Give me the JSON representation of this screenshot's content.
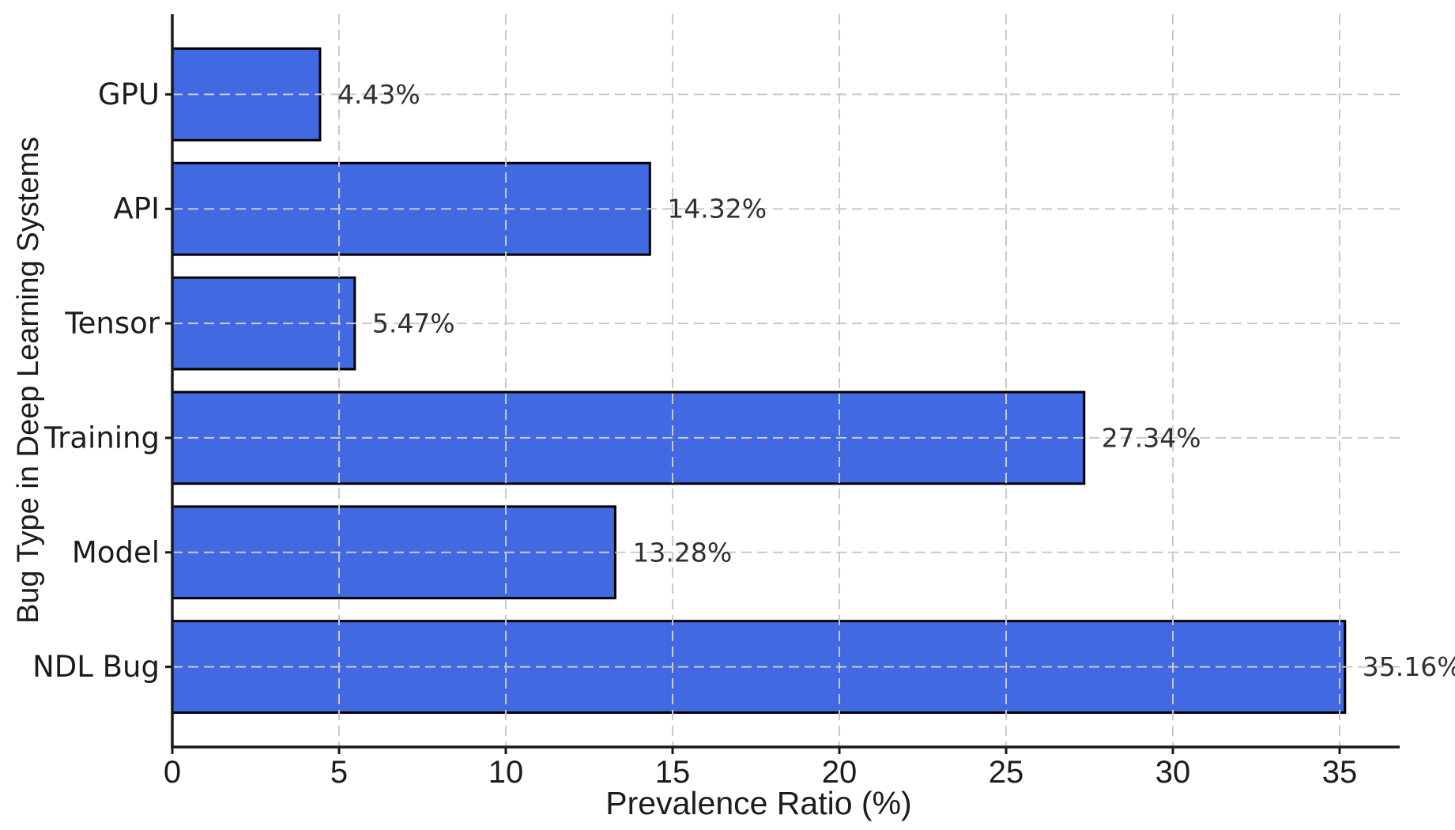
{
  "chart_data": {
    "type": "bar",
    "orientation": "horizontal",
    "title": "",
    "xlabel": "Prevalence Ratio (%)",
    "ylabel": "Bug Type in Deep Learning Systems",
    "categories": [
      "GPU",
      "API",
      "Tensor",
      "Training",
      "Model",
      "NDL Bug"
    ],
    "values": [
      4.43,
      14.32,
      5.47,
      27.34,
      13.28,
      35.16
    ],
    "value_labels": [
      "4.43%",
      "14.32%",
      "5.47%",
      "27.34%",
      "13.28%",
      "35.16%"
    ],
    "xticks": [
      0,
      5,
      10,
      15,
      20,
      25,
      30,
      35
    ],
    "xtick_labels": [
      "0",
      "5",
      "10",
      "15",
      "20",
      "25",
      "30",
      "35"
    ],
    "xlim": [
      0,
      36.8
    ],
    "grid": {
      "visible": true,
      "style": "dashed",
      "axes": "both",
      "above_bars": true
    },
    "legend": "none",
    "colors": {
      "bar_fill": "#4169E1",
      "bar_edge": "#000000",
      "grid": "#c9c9c9",
      "spine": "#1a1a1a",
      "text": "#262626"
    }
  }
}
